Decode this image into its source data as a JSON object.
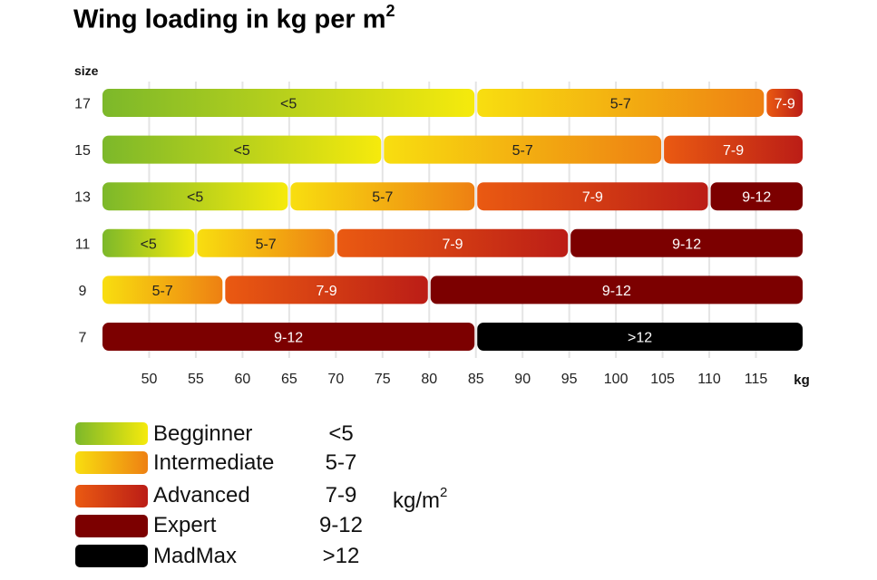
{
  "chart_data": {
    "type": "bar",
    "orientation": "horizontal",
    "stacked": true,
    "title": "Wing loading in kg per m",
    "title_superscript": "2",
    "ylabel": "size",
    "xlabel": "kg",
    "xlim": [
      45,
      120
    ],
    "xticks": [
      50,
      55,
      60,
      65,
      70,
      75,
      80,
      85,
      90,
      95,
      100,
      105,
      110,
      115
    ],
    "grid": "vertical",
    "rows": [
      {
        "size": "17",
        "segments": [
          {
            "label": "<5",
            "category": "beginner",
            "from": 45,
            "to": 85
          },
          {
            "label": "5-7",
            "category": "intermediate",
            "from": 85,
            "to": 116
          },
          {
            "label": "7-9",
            "category": "advanced",
            "from": 116,
            "to": 120
          }
        ]
      },
      {
        "size": "15",
        "segments": [
          {
            "label": "<5",
            "category": "beginner",
            "from": 45,
            "to": 75
          },
          {
            "label": "5-7",
            "category": "intermediate",
            "from": 75,
            "to": 105
          },
          {
            "label": "7-9",
            "category": "advanced",
            "from": 105,
            "to": 120
          }
        ]
      },
      {
        "size": "13",
        "segments": [
          {
            "label": "<5",
            "category": "beginner",
            "from": 45,
            "to": 65
          },
          {
            "label": "5-7",
            "category": "intermediate",
            "from": 65,
            "to": 85
          },
          {
            "label": "7-9",
            "category": "advanced",
            "from": 85,
            "to": 110
          },
          {
            "label": "9-12",
            "category": "expert",
            "from": 110,
            "to": 120
          }
        ]
      },
      {
        "size": "11",
        "segments": [
          {
            "label": "<5",
            "category": "beginner",
            "from": 45,
            "to": 55
          },
          {
            "label": "5-7",
            "category": "intermediate",
            "from": 55,
            "to": 70
          },
          {
            "label": "7-9",
            "category": "advanced",
            "from": 70,
            "to": 95
          },
          {
            "label": "9-12",
            "category": "expert",
            "from": 95,
            "to": 120
          }
        ]
      },
      {
        "size": "9",
        "segments": [
          {
            "label": "5-7",
            "category": "intermediate",
            "from": 45,
            "to": 58
          },
          {
            "label": "7-9",
            "category": "advanced",
            "from": 58,
            "to": 80
          },
          {
            "label": "9-12",
            "category": "expert",
            "from": 80,
            "to": 120
          }
        ]
      },
      {
        "size": "7",
        "segments": [
          {
            "label": "9-12",
            "category": "expert",
            "from": 45,
            "to": 85
          },
          {
            "label": ">12",
            "category": "madmax",
            "from": 85,
            "to": 120
          }
        ]
      }
    ],
    "legend": {
      "placement": "bottom-left",
      "unit": "kg/m",
      "unit_superscript": "2",
      "items": [
        {
          "key": "beginner",
          "name": "Begginner",
          "range": "<5"
        },
        {
          "key": "intermediate",
          "name": "Intermediate",
          "range": "5-7"
        },
        {
          "key": "advanced",
          "name": "Advanced",
          "range": "7-9"
        },
        {
          "key": "expert",
          "name": "Expert",
          "range": "9-12"
        },
        {
          "key": "madmax",
          "name": "MadMax",
          "range": ">12"
        }
      ]
    },
    "colors": {
      "beginner": {
        "from": "#7cb82a",
        "to": "#f6ea0c",
        "text": "#222222"
      },
      "intermediate": {
        "from": "#f8de10",
        "to": "#ee8012",
        "text": "#222222"
      },
      "advanced": {
        "from": "#ea5a12",
        "to": "#bb1d16",
        "text": "#ffffff"
      },
      "expert": {
        "from": "#7c0000",
        "to": "#7c0000",
        "text": "#ffffff"
      },
      "madmax": {
        "from": "#000000",
        "to": "#000000",
        "text": "#ffffff"
      }
    }
  }
}
